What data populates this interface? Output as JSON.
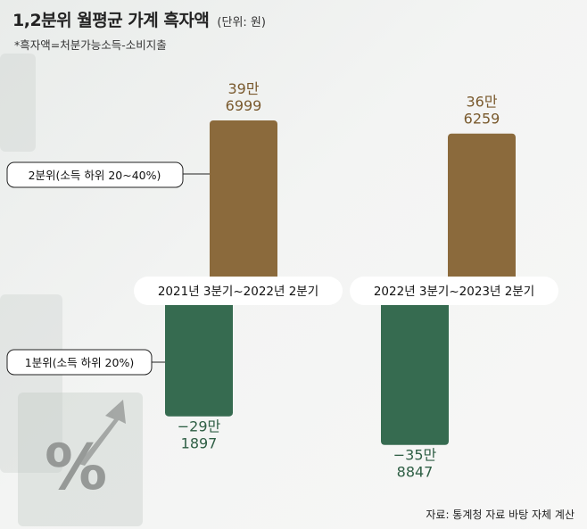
{
  "title": "1,2분위 월평균 가계 흑자액",
  "unit": "(단위: 원)",
  "subtitle": "*흑자액=처분가능소득-소비지출",
  "source": "자료: 통계청 자료 바탕 자체 계산",
  "colors": {
    "quintile2": "#8b6a3c",
    "quintile1": "#366b50",
    "quintile2_text": "#7a5a2e",
    "quintile1_text": "#2f5f45"
  },
  "chart_data": {
    "type": "bar",
    "title": "1,2분위 월평균 가계 흑자액",
    "ylabel": "",
    "xlabel": "",
    "categories": [
      "2021년 3분기~2022년 2분기",
      "2022년 3분기~2023년 2분기"
    ],
    "series": [
      {
        "name": "2분위(소득 하위 20~40%)",
        "values": [
          396999,
          366259
        ],
        "labels": [
          [
            "39만",
            "6999"
          ],
          [
            "36만",
            "6259"
          ]
        ]
      },
      {
        "name": "1분위(소득 하위 20%)",
        "values": [
          -291897,
          -358847
        ],
        "labels": [
          [
            "−29만",
            "1897"
          ],
          [
            "−35만",
            "8847"
          ]
        ]
      }
    ],
    "legend": "left, callout lines"
  },
  "decor": {
    "percent_icon": "percent-arrow-icon"
  }
}
